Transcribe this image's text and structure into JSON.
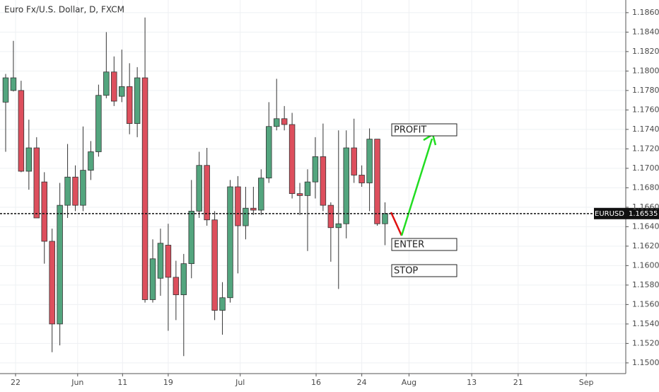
{
  "chart_data": {
    "type": "candlestick",
    "title": "Euro Fx/U.S. Dollar, D, FXCM",
    "x": [
      0,
      1,
      2,
      3,
      4,
      5,
      6,
      7,
      8,
      9,
      10,
      11,
      12,
      13,
      14,
      15,
      16,
      17,
      18,
      19,
      20,
      21,
      22,
      23,
      24,
      25,
      26,
      27,
      28,
      29,
      30,
      31,
      32,
      33,
      34,
      35,
      36,
      37,
      38,
      39,
      40,
      41,
      42,
      43,
      44,
      45,
      46,
      47,
      48,
      49
    ],
    "open": [
      1.1768,
      1.178,
      1.178,
      1.1697,
      1.1721,
      1.1686,
      1.1625,
      1.154,
      1.1662,
      1.1691,
      1.1662,
      1.1698,
      1.1717,
      1.1775,
      1.1799,
      1.1774,
      1.1784,
      1.1746,
      1.1793,
      1.1565,
      1.1587,
      1.1621,
      1.1588,
      1.157,
      1.1602,
      1.1656,
      1.1703,
      1.1647,
      1.1554,
      1.1567,
      1.1681,
      1.1641,
      1.1659,
      1.1657,
      1.169,
      1.1743,
      1.1751,
      1.1745,
      1.1674,
      1.1672,
      1.1686,
      1.1712,
      1.1662,
      1.1639,
      1.1643,
      1.1721,
      1.1693,
      1.1685,
      1.173,
      1.1643
    ],
    "high": [
      1.1797,
      1.1831,
      1.179,
      1.175,
      1.1732,
      1.1696,
      1.1638,
      1.1685,
      1.1725,
      1.1703,
      1.1743,
      1.1728,
      1.1786,
      1.184,
      1.1815,
      1.1822,
      1.1808,
      1.1804,
      1.1855,
      1.1627,
      1.1638,
      1.1643,
      1.1605,
      1.1612,
      1.1688,
      1.1717,
      1.1721,
      1.1656,
      1.1583,
      1.1688,
      1.1692,
      1.1681,
      1.1681,
      1.1699,
      1.1768,
      1.1792,
      1.1764,
      1.1757,
      1.1685,
      1.1699,
      1.1732,
      1.1746,
      1.1665,
      1.1739,
      1.1739,
      1.1751,
      1.1703,
      1.1741,
      1.173,
      1.1665
    ],
    "low": [
      1.1717,
      1.1779,
      1.1696,
      1.1678,
      1.1649,
      1.1602,
      1.1511,
      1.1518,
      1.1649,
      1.1656,
      1.1656,
      1.1688,
      1.1712,
      1.1772,
      1.1764,
      1.1768,
      1.1735,
      1.1732,
      1.1562,
      1.1562,
      1.1569,
      1.1533,
      1.1544,
      1.1507,
      1.1587,
      1.1649,
      1.1641,
      1.1544,
      1.1529,
      1.1562,
      1.1592,
      1.1627,
      1.1652,
      1.1652,
      1.1685,
      1.1739,
      1.1739,
      1.1669,
      1.1652,
      1.1615,
      1.1669,
      1.1656,
      1.1604,
      1.1576,
      1.1628,
      1.1685,
      1.1681,
      1.1656,
      1.1641,
      1.1621
    ],
    "close": [
      1.1793,
      1.1793,
      1.1697,
      1.1721,
      1.1649,
      1.1625,
      1.154,
      1.1662,
      1.1691,
      1.1662,
      1.1698,
      1.1717,
      1.1775,
      1.1799,
      1.1769,
      1.1784,
      1.1746,
      1.1793,
      1.1565,
      1.1607,
      1.1623,
      1.1588,
      1.157,
      1.1602,
      1.1656,
      1.1703,
      1.1647,
      1.1554,
      1.1567,
      1.1681,
      1.1641,
      1.1659,
      1.1657,
      1.169,
      1.1743,
      1.1751,
      1.1745,
      1.1674,
      1.1672,
      1.1686,
      1.1712,
      1.1662,
      1.1639,
      1.1643,
      1.1721,
      1.1693,
      1.1685,
      1.173,
      1.1643,
      1.16535
    ],
    "up_color": "#53a57e",
    "down_color": "#dd4f5d",
    "xlim": [
      -0.73,
      80.1
    ],
    "xticks": [
      {
        "value": 1.28,
        "label": "22"
      },
      {
        "value": 9.3,
        "label": "Jun"
      },
      {
        "value": 15.1,
        "label": "11"
      },
      {
        "value": 21,
        "label": "19"
      },
      {
        "value": 30.3,
        "label": "Jul"
      },
      {
        "value": 40.1,
        "label": "16"
      },
      {
        "value": 46,
        "label": "24"
      },
      {
        "value": 52.1,
        "label": "Aug"
      },
      {
        "value": 60.2,
        "label": "13"
      },
      {
        "value": 66.2,
        "label": "21"
      },
      {
        "value": 75,
        "label": "Sep"
      }
    ],
    "ylim": [
      1.1489,
      1.1873
    ],
    "yticks": [
      {
        "value": 1.15,
        "label": "1.15000"
      },
      {
        "value": 1.152,
        "label": "1.15200"
      },
      {
        "value": 1.154,
        "label": "1.15400"
      },
      {
        "value": 1.156,
        "label": "1.15600"
      },
      {
        "value": 1.158,
        "label": "1.15800"
      },
      {
        "value": 1.16,
        "label": "1.16000"
      },
      {
        "value": 1.162,
        "label": "1.16200"
      },
      {
        "value": 1.164,
        "label": "1.16400"
      },
      {
        "value": 1.166,
        "label": "1.16600"
      },
      {
        "value": 1.168,
        "label": "1.16800"
      },
      {
        "value": 1.17,
        "label": "1.17000"
      },
      {
        "value": 1.172,
        "label": "1.17200"
      },
      {
        "value": 1.174,
        "label": "1.17400"
      },
      {
        "value": 1.176,
        "label": "1.17600"
      },
      {
        "value": 1.178,
        "label": "1.17800"
      },
      {
        "value": 1.18,
        "label": "1.18000"
      },
      {
        "value": 1.182,
        "label": "1.18200"
      },
      {
        "value": 1.184,
        "label": "1.18400"
      },
      {
        "value": 1.186,
        "label": "1.18600"
      }
    ],
    "grid": true,
    "last_price": {
      "symbol": "EURUSD",
      "value": 1.16535,
      "label": "1.16535"
    },
    "annotations": [
      "PROFIT",
      "ENTER",
      "STOP"
    ]
  }
}
